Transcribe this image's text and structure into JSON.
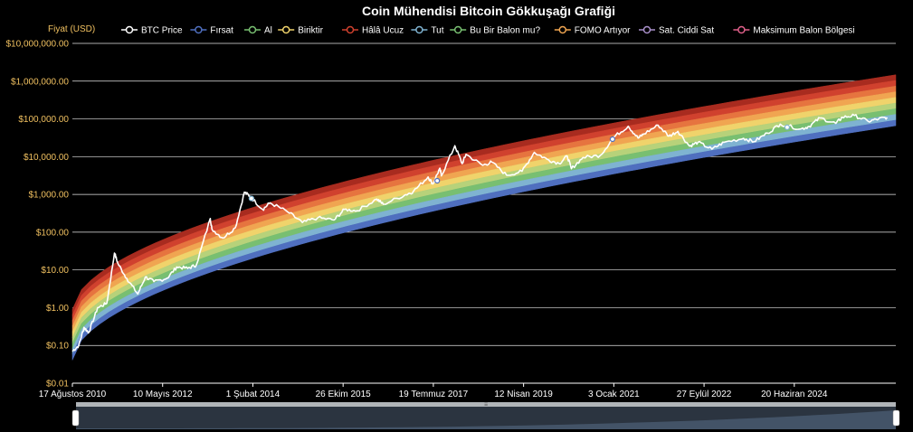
{
  "chart_data": {
    "type": "area",
    "title": "Coin Mühendisi Bitcoin Gökkuşağı Grafiği",
    "ylabel": "Fiyat (USD)",
    "xlabel": "",
    "y_scale": "log",
    "ylim": [
      0.01,
      10000000
    ],
    "y_ticks": [
      0.01,
      0.1,
      1,
      10,
      100,
      1000,
      10000,
      100000,
      1000000,
      10000000
    ],
    "y_tick_labels": [
      "$0.01",
      "$0.10",
      "$1.00",
      "$10.00",
      "$100.00",
      "$1,000.00",
      "$10,000.00",
      "$100,000.00",
      "$1,000,000.00",
      "$10,000,000.00"
    ],
    "xlim": [
      "2010-08-17",
      "2026-06-01"
    ],
    "x_ticks": [
      "2010-08-17",
      "2012-05-10",
      "2014-02-01",
      "2015-10-26",
      "2017-07-19",
      "2019-04-12",
      "2021-01-03",
      "2022-09-27",
      "2024-06-20"
    ],
    "x_tick_labels": [
      "17 Ağustos 2010",
      "10 Mayıs 2012",
      "1 Şubat 2014",
      "26 Ekim 2015",
      "19 Temmuz 2017",
      "12 Nisan 2019",
      "3 Ocak 2021",
      "27 Eylül 2022",
      "20 Haziran 2024"
    ],
    "legend_position": "top",
    "grid": "horizontal",
    "bands": [
      {
        "name": "Fırsat",
        "color": "#4f6fbf",
        "bottom_start": 0.041,
        "bottom_end": 66000
      },
      {
        "name": "Al",
        "color": "#7fb3d1",
        "bottom_start": 0.058,
        "bottom_end": 93000
      },
      {
        "name": "Biriktir",
        "color": "#78bf71",
        "bottom_start": 0.082,
        "bottom_end": 132000
      },
      {
        "name": "Hâlâ Ucuz",
        "color": "#b7d27a",
        "bottom_start": 0.115,
        "bottom_end": 186000
      },
      {
        "name": "Tut",
        "color": "#f0d36b",
        "bottom_start": 0.162,
        "bottom_end": 263000
      },
      {
        "name": "Bu Bir Balon mu?",
        "color": "#f0a551",
        "bottom_start": 0.229,
        "bottom_end": 372000
      },
      {
        "name": "FOMO Artıyor",
        "color": "#e6743f",
        "bottom_start": 0.323,
        "bottom_end": 525000
      },
      {
        "name": "Sat. Ciddi Sat",
        "color": "#d0412e",
        "bottom_start": 0.456,
        "bottom_end": 741000
      },
      {
        "name": "Maksimum Balon Bölgesi",
        "color": "#a82b1f",
        "bottom_start": 0.644,
        "bottom_end": 1046000,
        "top_start": 0.91,
        "top_end": 1480000
      }
    ],
    "legend": [
      {
        "name": "BTC Price",
        "color": "#ffffff"
      },
      {
        "name": "Fırsat",
        "color": "#4f6fbf"
      },
      {
        "name": "Al",
        "color": "#78bf71"
      },
      {
        "name": "Biriktir",
        "color": "#f0d36b"
      },
      {
        "name": "Hâlâ Ucuz",
        "color": "#d0412e"
      },
      {
        "name": "Tut",
        "color": "#7fb3d1"
      },
      {
        "name": "Bu Bir Balon mu?",
        "color": "#78bf71"
      },
      {
        "name": "FOMO Artıyor",
        "color": "#f0a551"
      },
      {
        "name": "Sat. Ciddi Sat",
        "color": "#a88fc9"
      },
      {
        "name": "Maksimum Balon Bölgesi",
        "color": "#e0608a"
      }
    ],
    "series": [
      {
        "name": "BTC Price",
        "color": "#ffffff",
        "points": [
          [
            "2010-08-17",
            0.07
          ],
          [
            "2010-10-01",
            0.1
          ],
          [
            "2010-11-06",
            0.3
          ],
          [
            "2010-12-10",
            0.22
          ],
          [
            "2011-02-10",
            1.0
          ],
          [
            "2011-04-15",
            1.3
          ],
          [
            "2011-06-08",
            28.0
          ],
          [
            "2011-07-01",
            15.0
          ],
          [
            "2011-09-01",
            6.0
          ],
          [
            "2011-11-18",
            2.3
          ],
          [
            "2012-01-10",
            6.5
          ],
          [
            "2012-03-10",
            4.9
          ],
          [
            "2012-06-10",
            6.0
          ],
          [
            "2012-08-17",
            12.0
          ],
          [
            "2012-11-01",
            11.0
          ],
          [
            "2013-01-01",
            13.5
          ],
          [
            "2013-04-09",
            230.0
          ],
          [
            "2013-04-20",
            120.0
          ],
          [
            "2013-07-05",
            70.0
          ],
          [
            "2013-10-01",
            130.0
          ],
          [
            "2013-12-04",
            1150.0
          ],
          [
            "2014-01-10",
            900.0
          ],
          [
            "2014-04-11",
            400.0
          ],
          [
            "2014-06-01",
            600.0
          ],
          [
            "2014-10-01",
            350.0
          ],
          [
            "2015-01-14",
            180.0
          ],
          [
            "2015-05-01",
            240.0
          ],
          [
            "2015-08-24",
            210.0
          ],
          [
            "2015-11-04",
            400.0
          ],
          [
            "2016-02-01",
            370.0
          ],
          [
            "2016-06-18",
            750.0
          ],
          [
            "2016-08-02",
            550.0
          ],
          [
            "2016-12-31",
            960.0
          ],
          [
            "2017-03-01",
            1200.0
          ],
          [
            "2017-06-12",
            2900.0
          ],
          [
            "2017-07-16",
            1900.0
          ],
          [
            "2017-09-01",
            4800.0
          ],
          [
            "2017-09-15",
            3200.0
          ],
          [
            "2017-12-17",
            19500.0
          ],
          [
            "2018-02-06",
            6500.0
          ],
          [
            "2018-03-05",
            11500.0
          ],
          [
            "2018-06-29",
            5900.0
          ],
          [
            "2018-09-01",
            7200.0
          ],
          [
            "2018-12-15",
            3200.0
          ],
          [
            "2019-04-01",
            4100.0
          ],
          [
            "2019-06-26",
            13000.0
          ],
          [
            "2019-09-24",
            8500.0
          ],
          [
            "2019-12-17",
            6600.0
          ],
          [
            "2020-02-12",
            10300.0
          ],
          [
            "2020-03-12",
            4800.0
          ],
          [
            "2020-06-01",
            9500.0
          ],
          [
            "2020-10-01",
            10800.0
          ],
          [
            "2021-01-03",
            33000.0
          ],
          [
            "2021-04-14",
            64000.0
          ],
          [
            "2021-06-22",
            31000.0
          ],
          [
            "2021-08-01",
            40000.0
          ],
          [
            "2021-11-10",
            68000.0
          ],
          [
            "2022-01-24",
            35000.0
          ],
          [
            "2022-03-28",
            47000.0
          ],
          [
            "2022-06-18",
            19000.0
          ],
          [
            "2022-08-15",
            24000.0
          ],
          [
            "2022-11-21",
            15800.0
          ],
          [
            "2023-02-15",
            24000.0
          ],
          [
            "2023-07-01",
            30500.0
          ],
          [
            "2023-09-11",
            25000.0
          ],
          [
            "2023-12-15",
            42000.0
          ],
          [
            "2024-03-14",
            73000.0
          ],
          [
            "2024-08-05",
            54000.0
          ],
          [
            "2024-10-01",
            63000.0
          ],
          [
            "2024-12-17",
            106000.0
          ],
          [
            "2025-04-07",
            76000.0
          ],
          [
            "2025-05-22",
            110000.0
          ],
          [
            "2025-08-14",
            123000.0
          ],
          [
            "2025-11-20",
            86000.0
          ],
          [
            "2026-02-01",
            100000.0
          ],
          [
            "2026-04-01",
            110000.0
          ]
        ]
      }
    ],
    "markers": [
      {
        "date": "2014-01-22",
        "value": 780,
        "color": "#7fb3d1"
      },
      {
        "date": "2017-08-15",
        "value": 2300,
        "color": "#4f6fbf"
      },
      {
        "date": "2020-12-25",
        "value": 29000,
        "color": "#4f6fbf"
      },
      {
        "date": "2024-05-01",
        "value": 60000,
        "color": "#7fb3d1"
      }
    ]
  },
  "zoom_slider": {
    "start": "2010-08-17",
    "end": "2026-06-01",
    "handle_label": "≡"
  }
}
